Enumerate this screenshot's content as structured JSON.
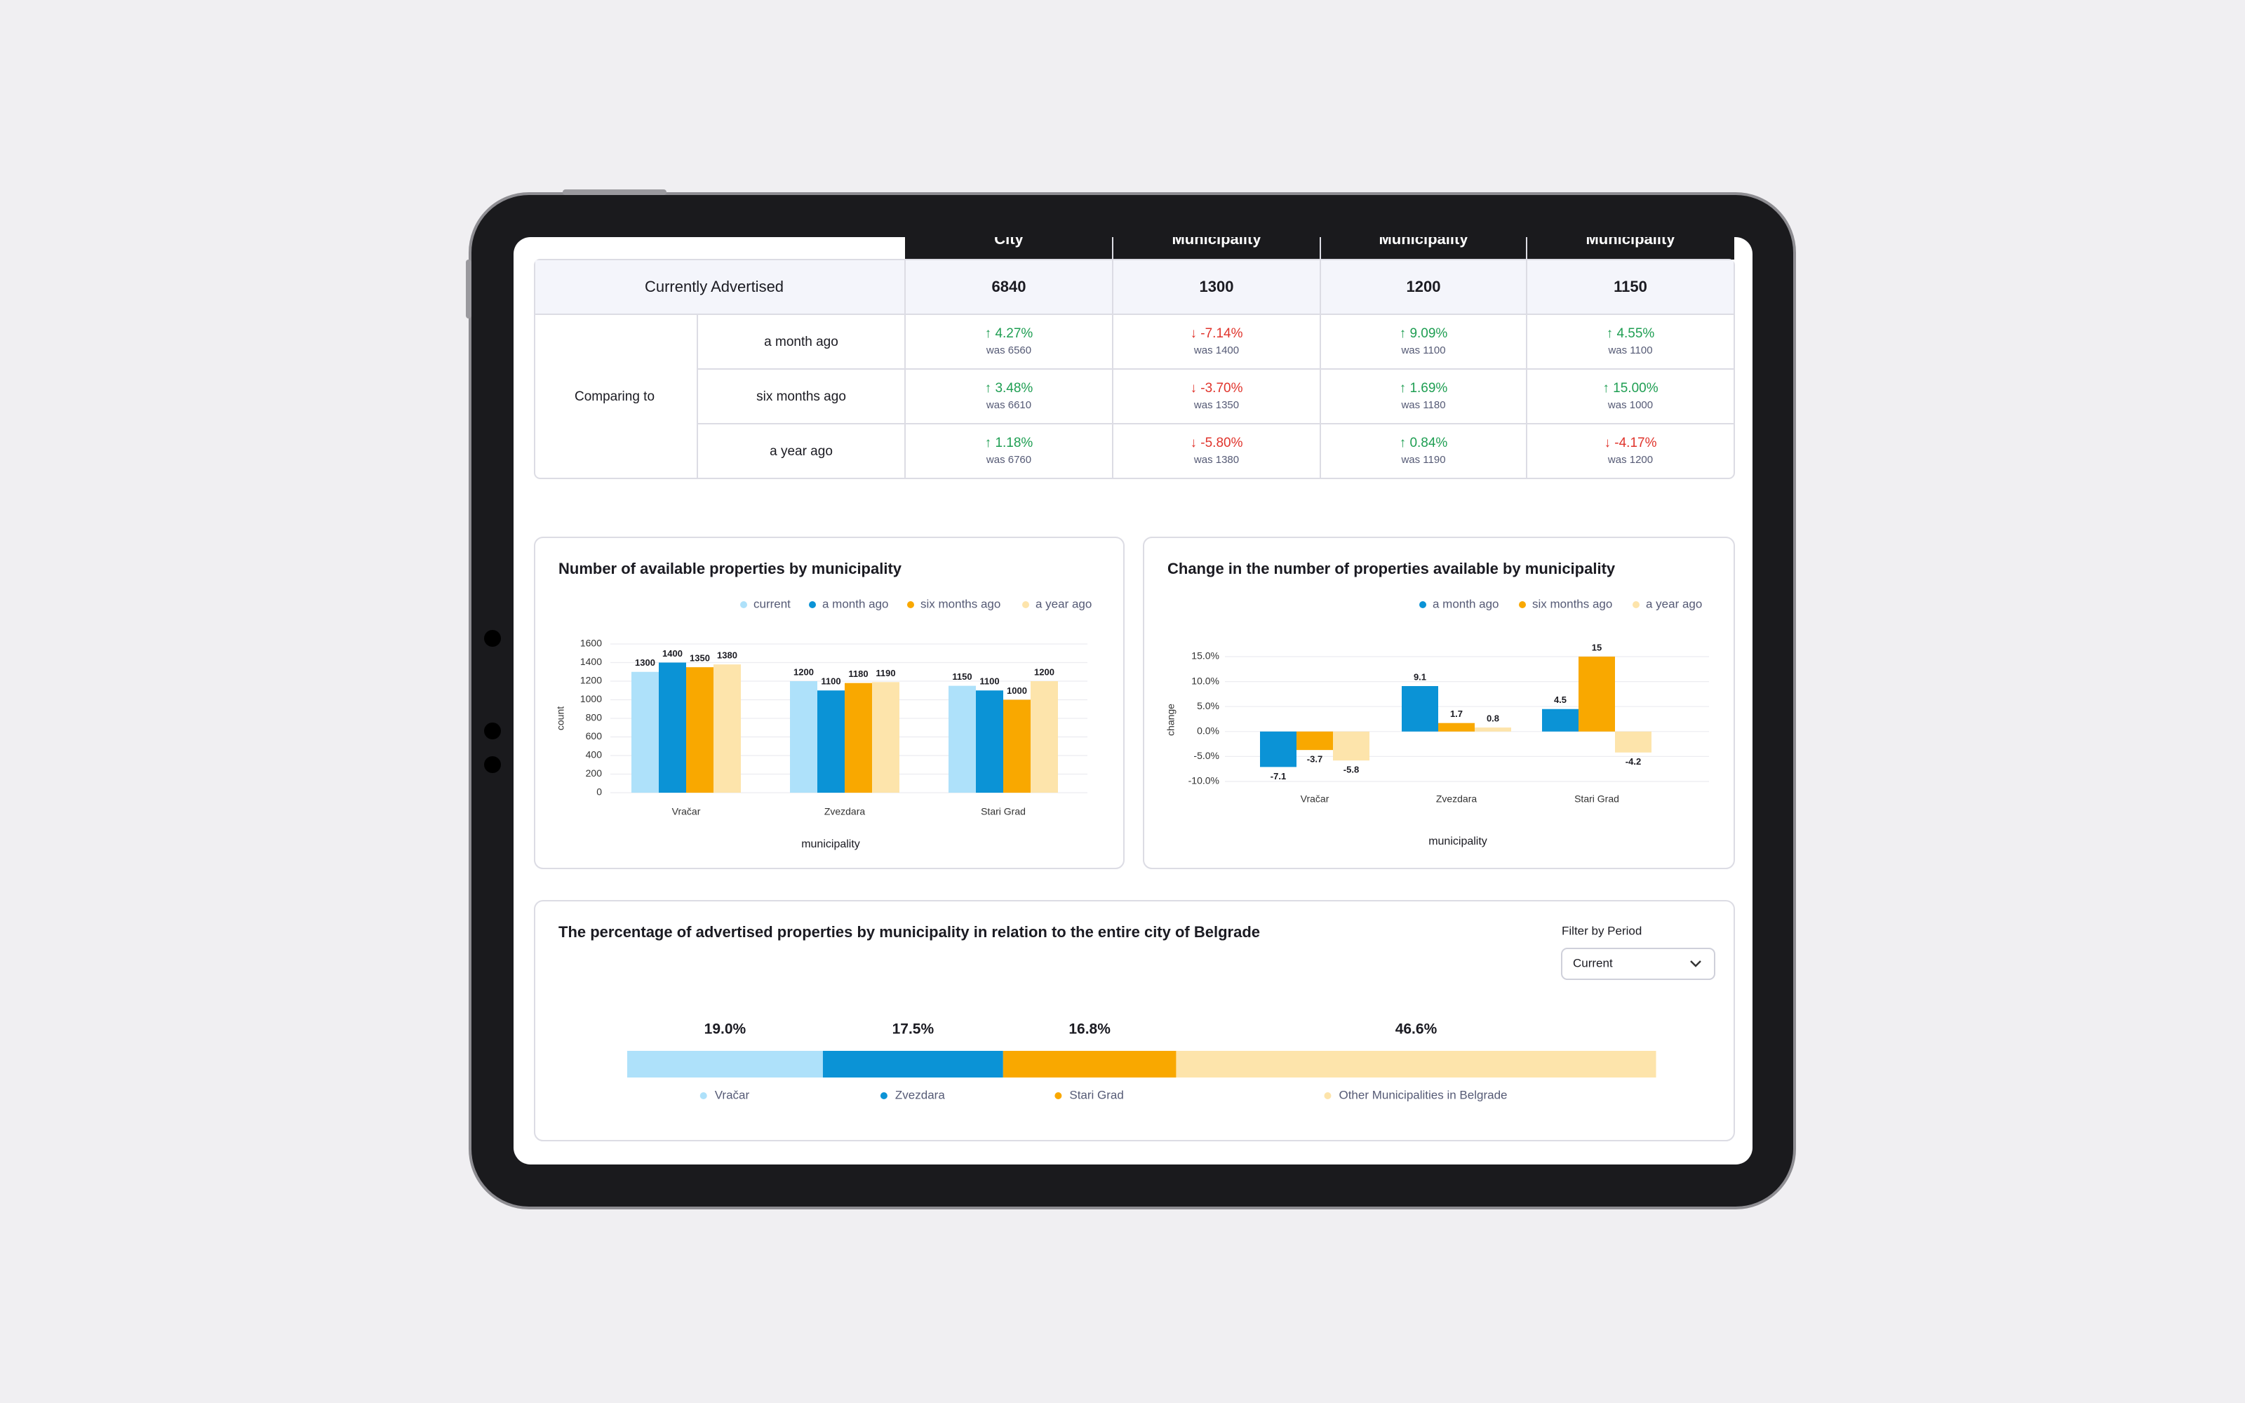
{
  "table": {
    "columns": [
      "City",
      "Municipality",
      "Municipality",
      "Municipality"
    ],
    "current": {
      "label": "Currently Advertised",
      "values": [
        "6840",
        "1300",
        "1200",
        "1150"
      ]
    },
    "comparing": {
      "label": "Comparing to",
      "rows": [
        {
          "period": "a month ago",
          "changes": [
            "↑ 4.27%",
            "↓ -7.14%",
            "↑ 9.09%",
            "↑ 4.55%"
          ],
          "was": [
            "was 6560",
            "was 1400",
            "was 1100",
            "was 1100"
          ]
        },
        {
          "period": "six months ago",
          "changes": [
            "↑ 3.48%",
            "↓ -3.70%",
            "↑ 1.69%",
            "↑ 15.00%"
          ],
          "was": [
            "was 6610",
            "was 1350",
            "was 1180",
            "was 1000"
          ]
        },
        {
          "period": "a year ago",
          "changes": [
            "↑ 1.18%",
            "↓ -5.80%",
            "↑ 0.84%",
            "↓ -4.17%"
          ],
          "was": [
            "was 6760",
            "was 1380",
            "was 1190",
            "was 1200"
          ]
        }
      ]
    }
  },
  "chart_data": [
    {
      "type": "bar",
      "title": "Number of available properties by municipality",
      "categories": [
        "Vračar",
        "Zvezdara",
        "Stari Grad"
      ],
      "series": [
        {
          "name": "current",
          "color": "#aee1fa",
          "values": [
            1300,
            1200,
            1150
          ]
        },
        {
          "name": "a month ago",
          "color": "#0b93d6",
          "values": [
            1400,
            1100,
            1100
          ]
        },
        {
          "name": "six months ago",
          "color": "#f9a800",
          "values": [
            1350,
            1180,
            1000
          ]
        },
        {
          "name": "a year ago",
          "color": "#fde4ab",
          "values": [
            1380,
            1190,
            1200
          ]
        }
      ],
      "ylim": [
        0,
        1600
      ],
      "yticks": [
        0,
        200,
        400,
        600,
        800,
        1000,
        1200,
        1400,
        1600
      ],
      "xlabel": "municipality",
      "ylabel": "count",
      "grid": true
    },
    {
      "type": "bar",
      "title": "Change in the number of properties available by municipality",
      "categories": [
        "Vračar",
        "Zvezdara",
        "Stari Grad"
      ],
      "series": [
        {
          "name": "a month ago",
          "color": "#0b93d6",
          "values": [
            -7.1,
            9.1,
            4.5
          ]
        },
        {
          "name": "six months ago",
          "color": "#f9a800",
          "values": [
            -3.7,
            1.7,
            15
          ]
        },
        {
          "name": "a year ago",
          "color": "#fde4ab",
          "values": [
            -5.8,
            0.8,
            -4.2
          ]
        }
      ],
      "ylim": [
        -10,
        15
      ],
      "yticks": [
        {
          "value": -10,
          "label": "-10.0%"
        },
        {
          "value": -5,
          "label": "-5.0%"
        },
        {
          "value": 0,
          "label": "0.0%"
        },
        {
          "value": 5,
          "label": "5.0%"
        },
        {
          "value": 10,
          "label": "10.0%"
        },
        {
          "value": 15,
          "label": "15.0%"
        }
      ],
      "xlabel": "municipality",
      "ylabel": "change",
      "grid": true
    },
    {
      "type": "bar",
      "orientation": "horizontal",
      "stacked": true,
      "title": "The percentage of advertised properties by municipality in relation to the entire city of Belgrade",
      "series": [
        {
          "name": "Vračar",
          "color": "#aee1fa",
          "values": [
            19.0
          ],
          "value_labels": [
            "19.0%"
          ]
        },
        {
          "name": "Zvezdara",
          "color": "#0b93d6",
          "values": [
            17.5
          ],
          "value_labels": [
            "17.5%"
          ]
        },
        {
          "name": "Stari Grad",
          "color": "#f9a800",
          "values": [
            16.8
          ],
          "value_labels": [
            "16.8%"
          ]
        },
        {
          "name": "Other Municipalities in Belgrade",
          "color": "#fde4ab",
          "values": [
            46.6
          ],
          "value_labels": [
            "46.6%"
          ]
        }
      ],
      "xlim": [
        0,
        100
      ]
    }
  ],
  "filter": {
    "label": "Filter by Period",
    "value": "Current"
  }
}
